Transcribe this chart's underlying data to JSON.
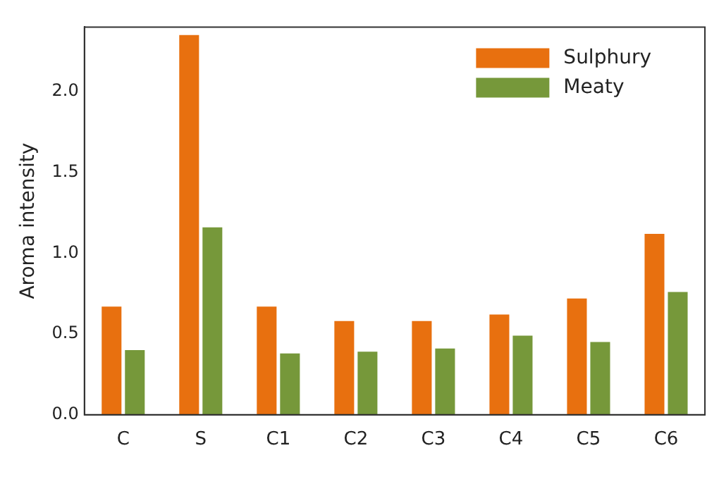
{
  "chart_data": {
    "type": "bar",
    "ylabel": "Aroma intensity",
    "categories": [
      "C",
      "S",
      "C1",
      "C2",
      "C3",
      "C4",
      "C5",
      "C6"
    ],
    "series": [
      {
        "name": "Sulphury",
        "color": "#e8700f",
        "values": [
          0.67,
          2.35,
          0.67,
          0.58,
          0.58,
          0.62,
          0.72,
          1.12
        ]
      },
      {
        "name": "Meaty",
        "color": "#76983a",
        "values": [
          0.4,
          1.16,
          0.38,
          0.39,
          0.41,
          0.49,
          0.45,
          0.76
        ]
      }
    ],
    "ylim": [
      0,
      2.4
    ],
    "yticks": [
      {
        "value": 0,
        "label": "0.0"
      },
      {
        "value": 0.5,
        "label": "0.5"
      },
      {
        "value": 1,
        "label": "1.0"
      },
      {
        "value": 1.5,
        "label": "1.5"
      },
      {
        "value": 2,
        "label": "2.0"
      }
    ],
    "grid": false,
    "legend": "top right"
  }
}
